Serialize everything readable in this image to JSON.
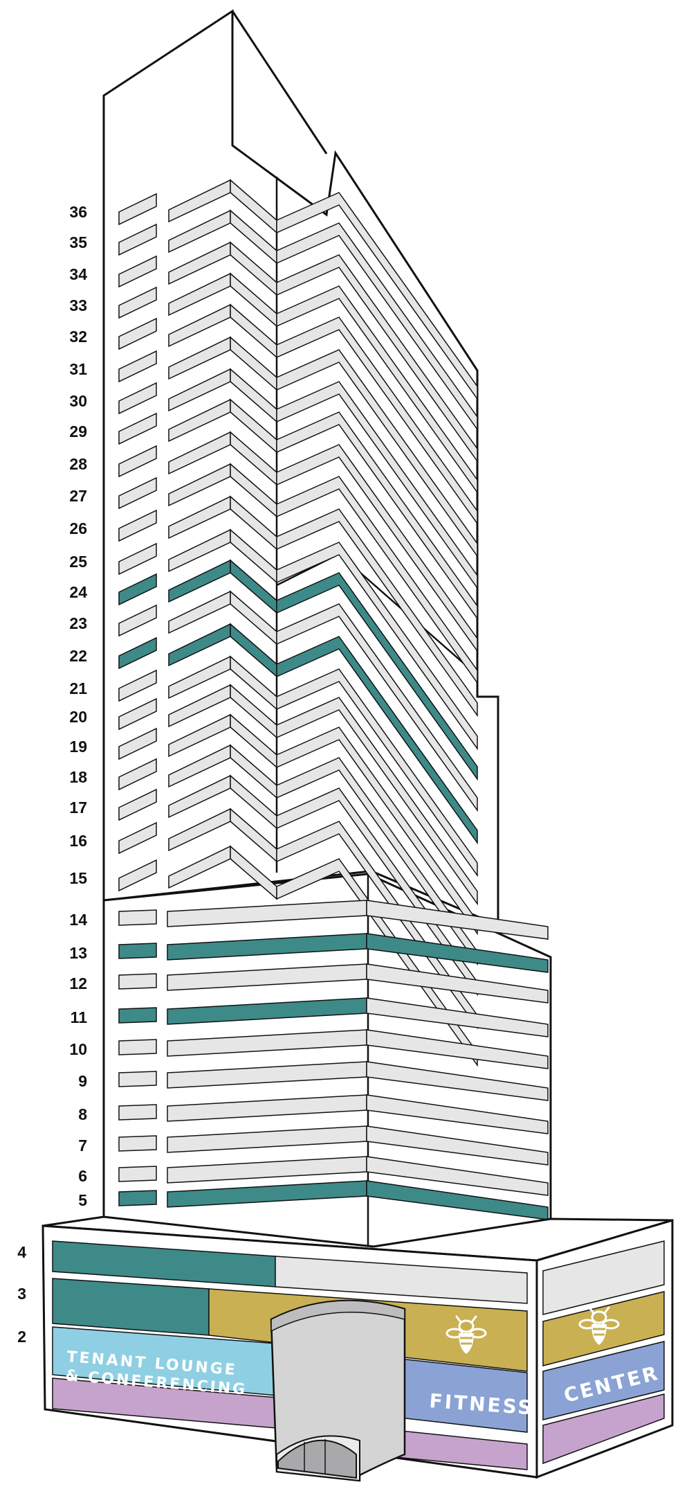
{
  "floors": [
    "36",
    "35",
    "34",
    "33",
    "32",
    "31",
    "30",
    "29",
    "28",
    "27",
    "26",
    "25",
    "24",
    "23",
    "22",
    "21",
    "20",
    "19",
    "18",
    "17",
    "16",
    "15",
    "14",
    "13",
    "12",
    "11",
    "10",
    "9",
    "8",
    "7",
    "6",
    "5",
    "4",
    "3",
    "2"
  ],
  "highlighted_floors": [
    "24",
    "22",
    "13",
    "11",
    "5",
    "4",
    "3"
  ],
  "amenities": {
    "tenant_lounge_line1": "TENANT LOUNGE",
    "tenant_lounge_line2": "& CONFERENCING",
    "fitness": "FITNESS",
    "center": "CENTER",
    "bee_icon": "bee-icon"
  },
  "colors": {
    "available": "#3d8a89",
    "floor_band": "#e6e6e6",
    "tenant_lounge": "#8fcfe3",
    "fitness_gold": "#c9b053",
    "fitness_blue": "#8aa3d4",
    "lilac": "#c6a3cc",
    "outline": "#111111",
    "entrance": "#cfcfd0"
  }
}
